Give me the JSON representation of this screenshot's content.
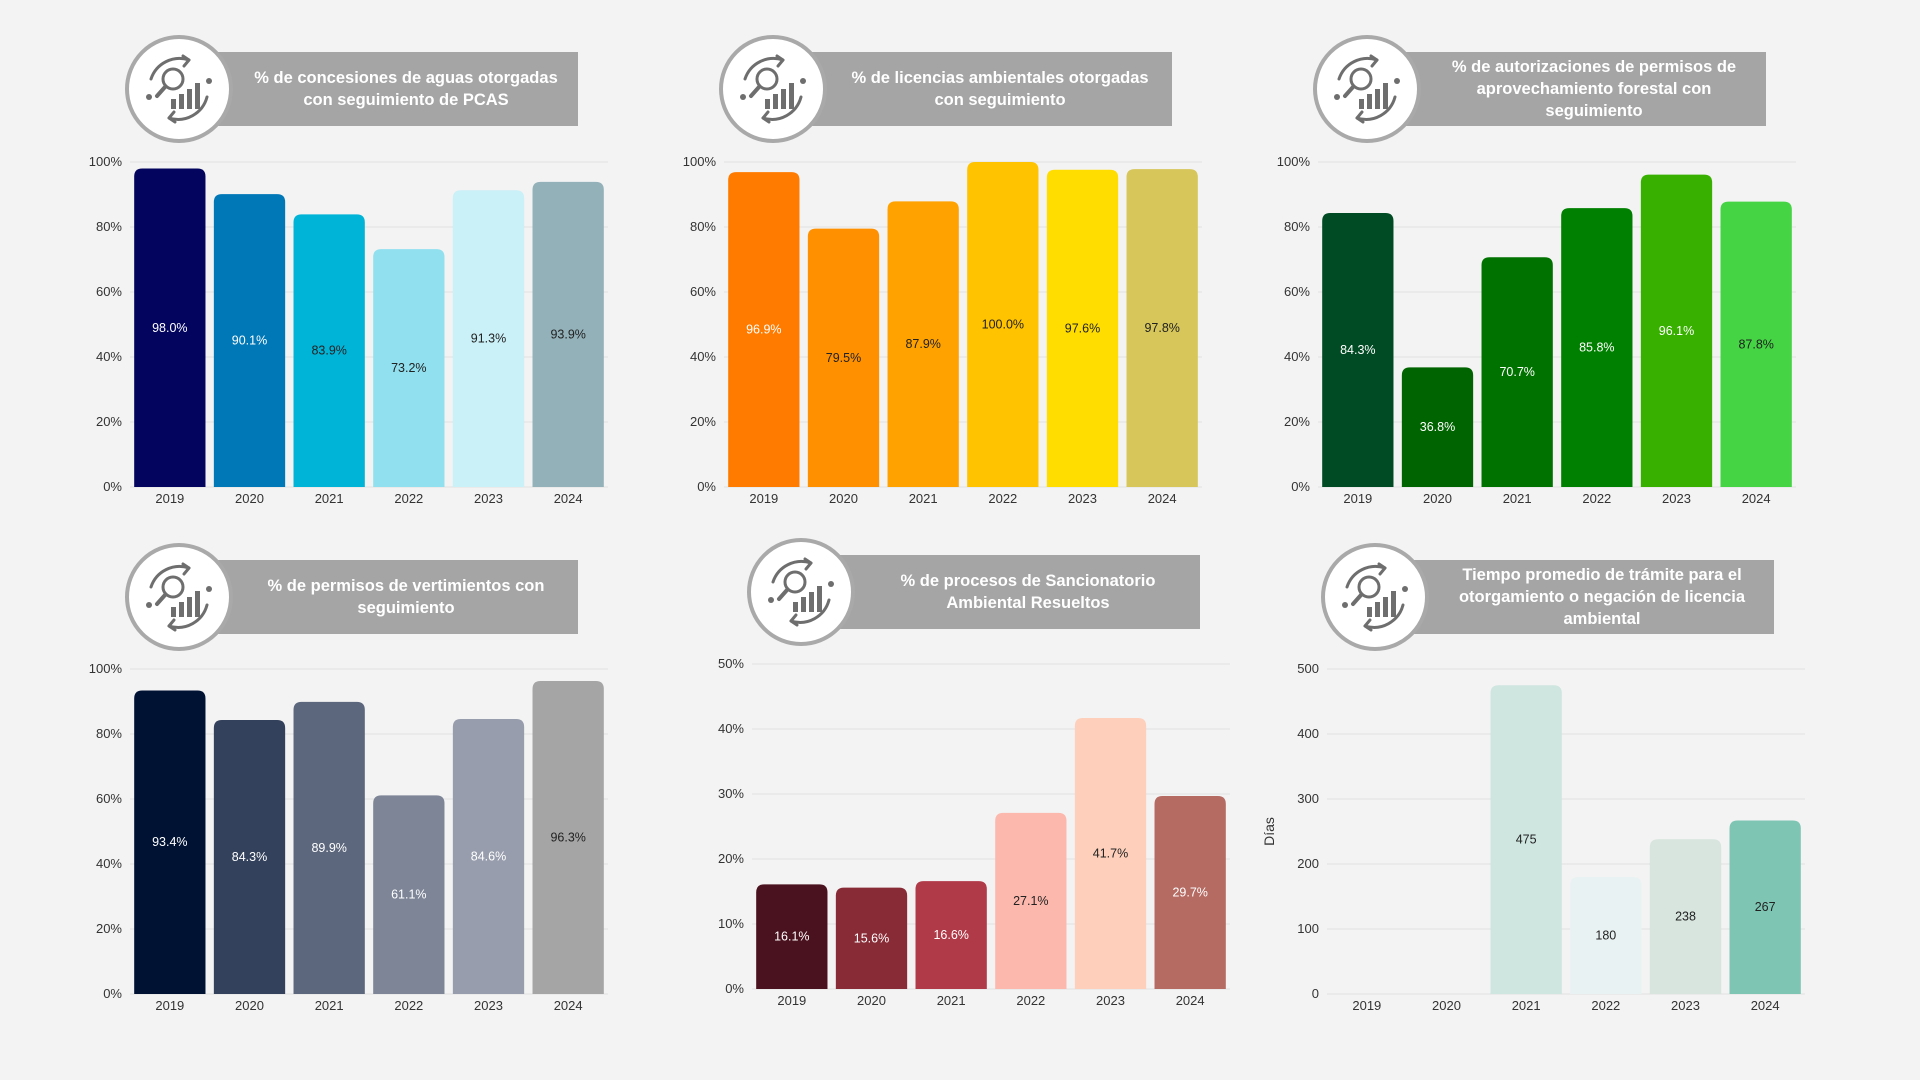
{
  "chart_data": [
    {
      "type": "bar",
      "title": "% de concesiones de aguas otorgadas con seguimiento de PCAS",
      "categories": [
        "2019",
        "2020",
        "2021",
        "2022",
        "2023",
        "2024"
      ],
      "values": [
        98.0,
        90.1,
        83.9,
        73.2,
        91.3,
        93.9
      ],
      "value_labels": [
        "98.0%",
        "90.1%",
        "83.9%",
        "73.2%",
        "91.3%",
        "93.9%"
      ],
      "colors": [
        "#03045e",
        "#0077b6",
        "#00b4d8",
        "#90e0ef",
        "#caf0f8",
        "#93b1b9"
      ],
      "label_colors": [
        "#ffffff",
        "#ffffff",
        "#222222",
        "#222222",
        "#222222",
        "#222222"
      ],
      "ylim": [
        0,
        100
      ],
      "yticks": [
        0,
        20,
        40,
        60,
        80,
        100
      ],
      "ytick_labels": [
        "0%",
        "20%",
        "40%",
        "60%",
        "80%",
        "100%"
      ],
      "xlabel": "",
      "ylabel": ""
    },
    {
      "type": "bar",
      "title": "% de licencias ambientales otorgadas con seguimiento",
      "categories": [
        "2019",
        "2020",
        "2021",
        "2022",
        "2023",
        "2024"
      ],
      "values": [
        96.9,
        79.5,
        87.9,
        100.0,
        97.6,
        97.8
      ],
      "value_labels": [
        "96.9%",
        "79.5%",
        "87.9%",
        "100.0%",
        "97.6%",
        "97.8%"
      ],
      "colors": [
        "#ff7b00",
        "#ff9000",
        "#ffa200",
        "#ffc300",
        "#ffdd00",
        "#d7c65a"
      ],
      "label_colors": [
        "#ffffff",
        "#222222",
        "#222222",
        "#222222",
        "#222222",
        "#222222"
      ],
      "ylim": [
        0,
        100
      ],
      "yticks": [
        0,
        20,
        40,
        60,
        80,
        100
      ],
      "ytick_labels": [
        "0%",
        "20%",
        "40%",
        "60%",
        "80%",
        "100%"
      ],
      "xlabel": "",
      "ylabel": ""
    },
    {
      "type": "bar",
      "title": "% de autorizaciones de permisos de aprovechamiento forestal con seguimiento",
      "categories": [
        "2019",
        "2020",
        "2021",
        "2022",
        "2023",
        "2024"
      ],
      "values": [
        84.3,
        36.8,
        70.7,
        85.8,
        96.1,
        87.8
      ],
      "value_labels": [
        "84.3%",
        "36.8%",
        "70.7%",
        "85.8%",
        "96.1%",
        "87.8%"
      ],
      "colors": [
        "#004b23",
        "#006400",
        "#007200",
        "#008000",
        "#38b000",
        "#44d444"
      ],
      "label_colors": [
        "#ffffff",
        "#ffffff",
        "#ffffff",
        "#ffffff",
        "#ffffff",
        "#222222"
      ],
      "ylim": [
        0,
        100
      ],
      "yticks": [
        0,
        20,
        40,
        60,
        80,
        100
      ],
      "ytick_labels": [
        "0%",
        "20%",
        "40%",
        "60%",
        "80%",
        "100%"
      ],
      "xlabel": "",
      "ylabel": ""
    },
    {
      "type": "bar",
      "title": "% de permisos de vertimientos con seguimiento",
      "categories": [
        "2019",
        "2020",
        "2021",
        "2022",
        "2023",
        "2024"
      ],
      "values": [
        93.4,
        84.3,
        89.9,
        61.1,
        84.6,
        96.3
      ],
      "value_labels": [
        "93.4%",
        "84.3%",
        "89.9%",
        "61.1%",
        "84.6%",
        "96.3%"
      ],
      "colors": [
        "#001233",
        "#33415c",
        "#5c677d",
        "#7d8597",
        "#979dac",
        "#a5a5a5"
      ],
      "label_colors": [
        "#ffffff",
        "#ffffff",
        "#ffffff",
        "#ffffff",
        "#ffffff",
        "#222222"
      ],
      "ylim": [
        0,
        100
      ],
      "yticks": [
        0,
        20,
        40,
        60,
        80,
        100
      ],
      "ytick_labels": [
        "0%",
        "20%",
        "40%",
        "60%",
        "80%",
        "100%"
      ],
      "xlabel": "",
      "ylabel": ""
    },
    {
      "type": "bar",
      "title": "% de procesos de Sancionatorio Ambiental Resueltos",
      "categories": [
        "2019",
        "2020",
        "2021",
        "2022",
        "2023",
        "2024"
      ],
      "values": [
        16.1,
        15.6,
        16.6,
        27.1,
        41.7,
        29.7
      ],
      "value_labels": [
        "16.1%",
        "15.6%",
        "16.6%",
        "27.1%",
        "41.7%",
        "29.7%"
      ],
      "colors": [
        "#4a111e",
        "#892b36",
        "#b03a48",
        "#fdb8ad",
        "#fed0bb",
        "#b56a62"
      ],
      "label_colors": [
        "#ffffff",
        "#ffffff",
        "#ffffff",
        "#222222",
        "#222222",
        "#ffffff"
      ],
      "ylim": [
        0,
        50
      ],
      "yticks": [
        0,
        10,
        20,
        30,
        40,
        50
      ],
      "ytick_labels": [
        "0%",
        "10%",
        "20%",
        "30%",
        "40%",
        "50%"
      ],
      "xlabel": "",
      "ylabel": ""
    },
    {
      "type": "bar",
      "title": "Tiempo promedio de trámite para el otorgamiento o negación de licencia ambiental",
      "categories": [
        "2019",
        "2020",
        "2021",
        "2022",
        "2023",
        "2024"
      ],
      "values": [
        0,
        0,
        475,
        180,
        238,
        267
      ],
      "value_labels": [
        "",
        "",
        "475",
        "180",
        "238",
        "267"
      ],
      "colors": [
        "#d0e4e0",
        "#d0e4e0",
        "#cfe5e0",
        "#e9f2f2",
        "#d7e5de",
        "#7ec5b3"
      ],
      "label_colors": [
        "#222222",
        "#222222",
        "#222222",
        "#222222",
        "#222222",
        "#222222"
      ],
      "ylim": [
        0,
        500
      ],
      "yticks": [
        0,
        100,
        200,
        300,
        400,
        500
      ],
      "ytick_labels": [
        "0",
        "100",
        "200",
        "300",
        "400",
        "500"
      ],
      "xlabel": "",
      "ylabel": "Días"
    }
  ]
}
